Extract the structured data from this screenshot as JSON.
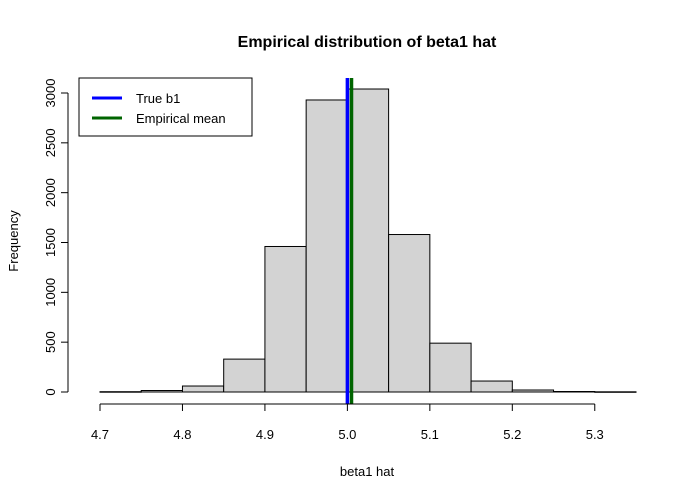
{
  "chart_data": {
    "type": "bar",
    "title": "Empirical distribution of beta1 hat",
    "xlabel": "beta1 hat",
    "ylabel": "Frequency",
    "xlim": [
      4.7,
      5.35
    ],
    "ylim": [
      0,
      3150
    ],
    "x_ticks": [
      4.7,
      4.8,
      4.9,
      5.0,
      5.1,
      5.2,
      5.3
    ],
    "x_tick_labels": [
      "4.7",
      "4.8",
      "4.9",
      "5.0",
      "5.1",
      "5.2",
      "5.3"
    ],
    "y_ticks": [
      0,
      500,
      1000,
      1500,
      2000,
      2500,
      3000
    ],
    "y_tick_labels": [
      "0",
      "500",
      "1000",
      "1500",
      "2000",
      "2500",
      "3000"
    ],
    "bins": [
      {
        "from": 4.7,
        "to": 4.75,
        "count": 3
      },
      {
        "from": 4.75,
        "to": 4.8,
        "count": 15
      },
      {
        "from": 4.8,
        "to": 4.85,
        "count": 60
      },
      {
        "from": 4.85,
        "to": 4.9,
        "count": 330
      },
      {
        "from": 4.9,
        "to": 4.95,
        "count": 1460
      },
      {
        "from": 4.95,
        "to": 5.0,
        "count": 2930
      },
      {
        "from": 5.0,
        "to": 5.05,
        "count": 3040
      },
      {
        "from": 5.05,
        "to": 5.1,
        "count": 1580
      },
      {
        "from": 5.1,
        "to": 5.15,
        "count": 490
      },
      {
        "from": 5.15,
        "to": 5.2,
        "count": 110
      },
      {
        "from": 5.2,
        "to": 5.25,
        "count": 20
      },
      {
        "from": 5.25,
        "to": 5.3,
        "count": 5
      },
      {
        "from": 5.3,
        "to": 5.35,
        "count": 2
      }
    ],
    "bar_fill": "#d3d3d3",
    "reference_lines": [
      {
        "name": "True b1",
        "x": 5.0,
        "color": "#0000ff"
      },
      {
        "name": "Empirical mean",
        "x": 5.005,
        "color": "#006400"
      }
    ],
    "legend": {
      "placement": "top-left",
      "entries": [
        "True b1",
        "Empirical mean"
      ]
    },
    "grid": false
  }
}
